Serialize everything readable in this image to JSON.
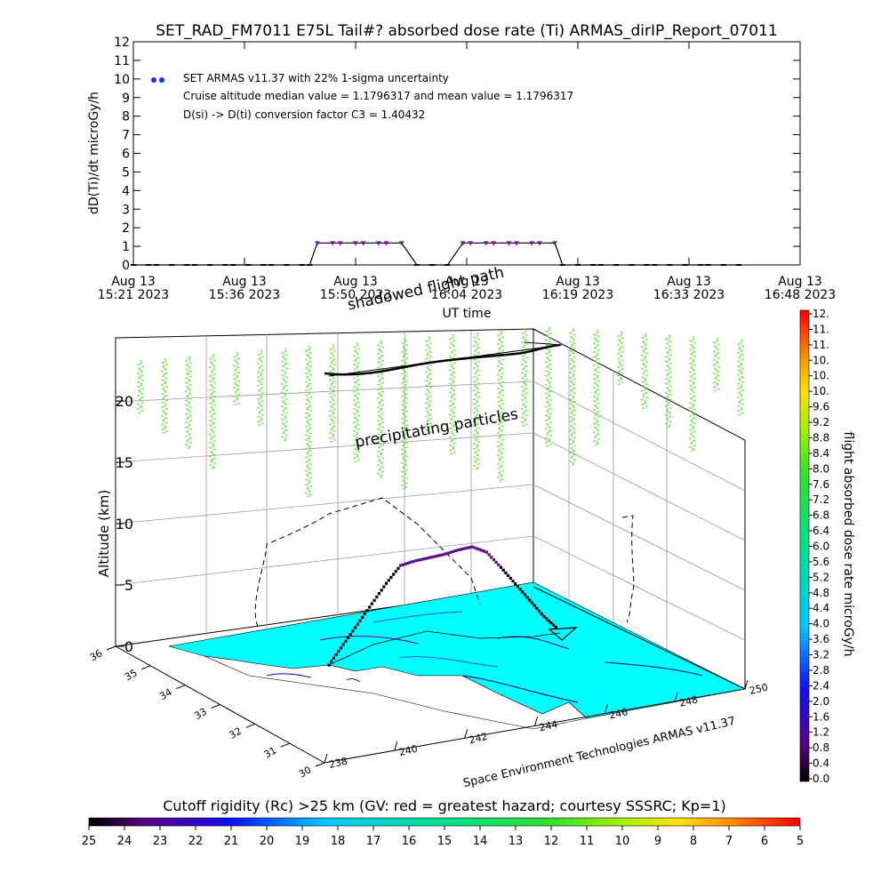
{
  "title": "SET_RAD_FM7011   E75L Tail#? absorbed dose rate (Ti) ARMAS_dirIP_Report_07011",
  "top_panel": {
    "ylabel": "dD(Ti)/dt microGy/h",
    "xlabel": "UT time",
    "legend_lines": [
      "SET ARMAS v11.37 with 22% 1-sigma uncertainty",
      "Cruise altitude median value = 1.1796317 and mean value = 1.1796317",
      "D(si) -> D(ti) conversion factor C3 = 1.40432"
    ],
    "xtick_labels": [
      {
        "line1": "Aug 13",
        "line2": "15:21 2023"
      },
      {
        "line1": "Aug 13",
        "line2": "15:36 2023"
      },
      {
        "line1": "Aug 13",
        "line2": "15:50 2023"
      },
      {
        "line1": "Aug 13",
        "line2": "16:04 2023"
      },
      {
        "line1": "Aug 13",
        "line2": "16:19 2023"
      },
      {
        "line1": "Aug 13",
        "line2": "16:33 2023"
      },
      {
        "line1": "Aug 13",
        "line2": "16:48 2023"
      }
    ],
    "yticks": [
      "0",
      "1",
      "2",
      "3",
      "4",
      "5",
      "6",
      "7",
      "8",
      "9",
      "10",
      "11",
      "12"
    ]
  },
  "chart_data": [
    {
      "type": "line",
      "title": "SET_RAD_FM7011   E75L Tail#? absorbed dose rate (Ti) ARMAS_dirIP_Report_07011",
      "xlabel": "UT time",
      "ylabel": "dD(Ti)/dt microGy/h",
      "x_range": [
        "15:21",
        "16:48"
      ],
      "ylim": [
        0,
        12
      ],
      "series": [
        {
          "name": "SET ARMAS v11.37 with 22% 1-sigma uncertainty",
          "points": [
            [
              "15:21",
              0
            ],
            [
              "15:23",
              0
            ],
            [
              "15:24",
              0
            ],
            [
              "15:26",
              0
            ],
            [
              "15:28",
              0
            ],
            [
              "15:29",
              0
            ],
            [
              "15:31",
              0
            ],
            [
              "15:33",
              0
            ],
            [
              "15:34",
              0
            ],
            [
              "15:36",
              0
            ],
            [
              "15:38",
              0
            ],
            [
              "15:39",
              0
            ],
            [
              "15:41",
              0
            ],
            [
              "15:43",
              0
            ],
            [
              "15:44",
              0
            ],
            [
              "15:45",
              1.18
            ],
            [
              "15:47",
              1.18
            ],
            [
              "15:48",
              1.18
            ],
            [
              "15:50",
              1.18
            ],
            [
              "15:51",
              1.18
            ],
            [
              "15:53",
              1.18
            ],
            [
              "15:54",
              1.18
            ],
            [
              "15:56",
              1.18
            ],
            [
              "15:58",
              0
            ],
            [
              "16:00",
              0
            ],
            [
              "16:02",
              0
            ],
            [
              "16:04",
              1.18
            ],
            [
              "16:05",
              1.18
            ],
            [
              "16:07",
              1.18
            ],
            [
              "16:08",
              1.18
            ],
            [
              "16:10",
              1.18
            ],
            [
              "16:11",
              1.18
            ],
            [
              "16:13",
              1.18
            ],
            [
              "16:14",
              1.18
            ],
            [
              "16:16",
              1.18
            ],
            [
              "16:17",
              0
            ],
            [
              "16:19",
              0
            ],
            [
              "16:21",
              0
            ],
            [
              "16:22",
              0
            ],
            [
              "16:24",
              0
            ],
            [
              "16:26",
              0
            ],
            [
              "16:28",
              0
            ],
            [
              "16:29",
              0
            ],
            [
              "16:31",
              0
            ],
            [
              "16:33",
              0
            ],
            [
              "16:35",
              0
            ],
            [
              "16:36",
              0
            ],
            [
              "16:38",
              0
            ],
            [
              "16:40",
              0
            ]
          ]
        }
      ]
    },
    {
      "type": "scatter",
      "xlabel": "Space Environment Technologies ARMAS v11.37",
      "zlabel": "Altitude (km)",
      "lon_ticks": [
        "238",
        "240",
        "242",
        "244",
        "246",
        "248",
        "250"
      ],
      "lat_ticks": [
        "30",
        "31",
        "32",
        "33",
        "34",
        "35",
        "36"
      ],
      "alt_ticks": [
        "0",
        "5",
        "10",
        "15",
        "20"
      ],
      "annotations": [
        "shadowed flight path",
        "precipitating particles"
      ],
      "flight_altitude_km": [
        0,
        1.5,
        3,
        4.5,
        6,
        7.3,
        7.5,
        7.6,
        7.7,
        7.9,
        8.0,
        7.4,
        6,
        4.5,
        3,
        1.5,
        0.3
      ],
      "colorbar": {
        "label": "flight absorbed dose rate microGy/h",
        "ticks": [
          "0.0",
          "0.4",
          "0.8",
          "1.2",
          "1.6",
          "2.0",
          "2.4",
          "2.8",
          "3.2",
          "3.6",
          "4.0",
          "4.4",
          "4.8",
          "5.2",
          "5.6",
          "6.0",
          "6.4",
          "6.8",
          "7.2",
          "7.6",
          "8.0",
          "8.4",
          "8.8",
          "9.2",
          "9.6",
          "10.",
          "10.",
          "10.",
          "11.",
          "11.",
          "12."
        ]
      },
      "rigidity_bar": {
        "label": "Cutoff rigidity (Rc) >25 km (GV: red = greatest hazard; courtesy SSSRC; Kp=1)",
        "ticks": [
          "25",
          "24",
          "23",
          "22",
          "21",
          "20",
          "19",
          "18",
          "17",
          "16",
          "15",
          "14",
          "13",
          "12",
          "11",
          "10",
          "9",
          "8",
          "7",
          "6",
          "5"
        ]
      }
    }
  ],
  "colors": {
    "ocean": "#00ffff",
    "series_marker": "#0000ff",
    "flight_path": "#000000",
    "precipitation": "#66dd44"
  }
}
